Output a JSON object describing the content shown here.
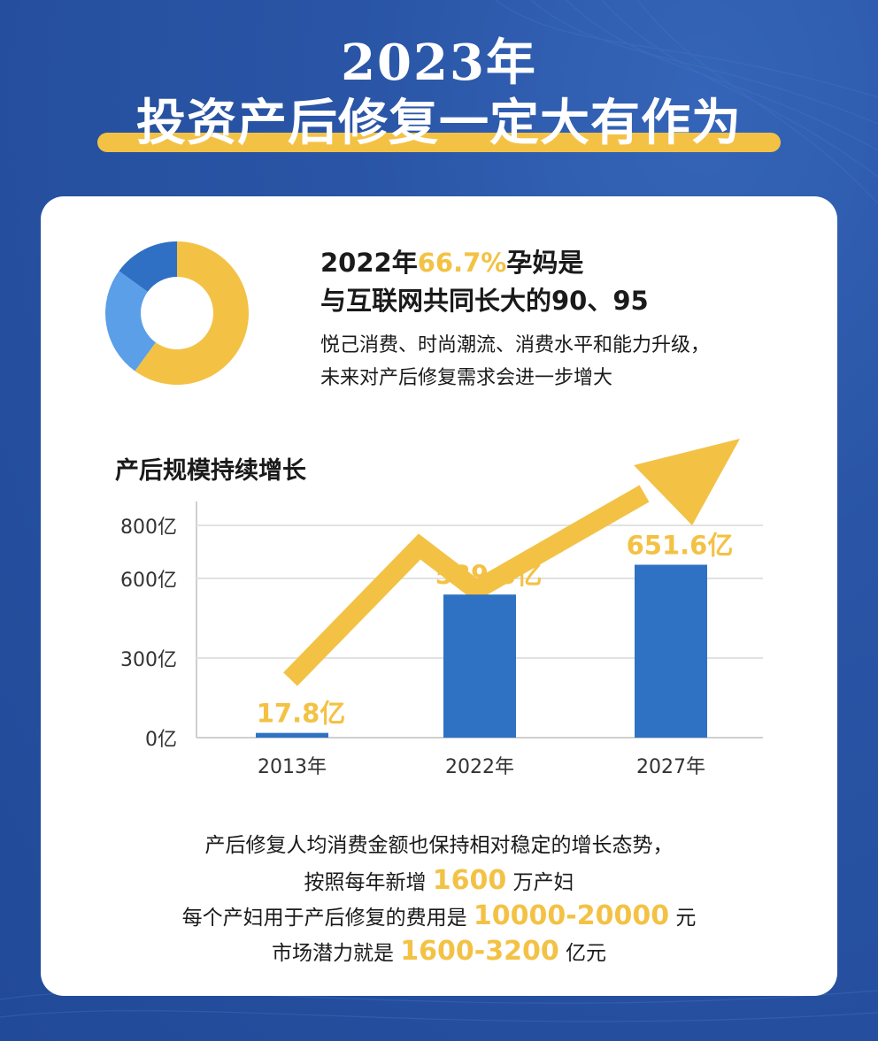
{
  "header": {
    "year": "2023年",
    "subtitle": "投资产后修复一定大有作为"
  },
  "stat": {
    "line1_prefix": "2022年",
    "line1_highlight": "66.7%",
    "line1_suffix": "孕妈是",
    "line2": "与互联网共同长大的90、95",
    "desc1": "悦己消费、时尚潮流、消费水平和能力升级，",
    "desc2": "未来对产后修复需求会进一步增大"
  },
  "donut_chart": {
    "type": "pie",
    "values": [
      0.6,
      0.25,
      0.15
    ],
    "colors": [
      "#f3c245",
      "#5b9fe8",
      "#2f6fc4"
    ]
  },
  "chart_data": {
    "type": "bar",
    "title": "产后规模持续增长",
    "categories": [
      "2013年",
      "2022年",
      "2027年"
    ],
    "values": [
      17.8,
      539.3,
      651.6
    ],
    "value_labels": [
      "17.8亿",
      "539.3亿",
      "651.6亿"
    ],
    "y_ticks": [
      {
        "value": 0,
        "label": "0亿"
      },
      {
        "value": 300,
        "label": "300亿"
      },
      {
        "value": 600,
        "label": "600亿"
      },
      {
        "value": 800,
        "label": "800亿"
      }
    ],
    "ylim": [
      0,
      800
    ],
    "grid": true,
    "bar_color": "#2f72c4",
    "label_color": "#f3c245",
    "trend_arrow_color": "#f3c245"
  },
  "bottom": {
    "line1": "产后修复人均消费金额也保持相对稳定的增长态势，",
    "line2_prefix": "按照每年新增 ",
    "line2_num": "1600",
    "line2_suffix": " 万产妇",
    "line3_prefix": "每个产妇用于产后修复的费用是 ",
    "line3_num": "10000-20000",
    "line3_suffix": " 元",
    "line4_prefix": "市场潜力就是 ",
    "line4_num": "1600-3200",
    "line4_suffix": " 亿元"
  },
  "colors": {
    "background": "#2a55a6",
    "accent": "#f3c245",
    "card": "#ffffff"
  }
}
